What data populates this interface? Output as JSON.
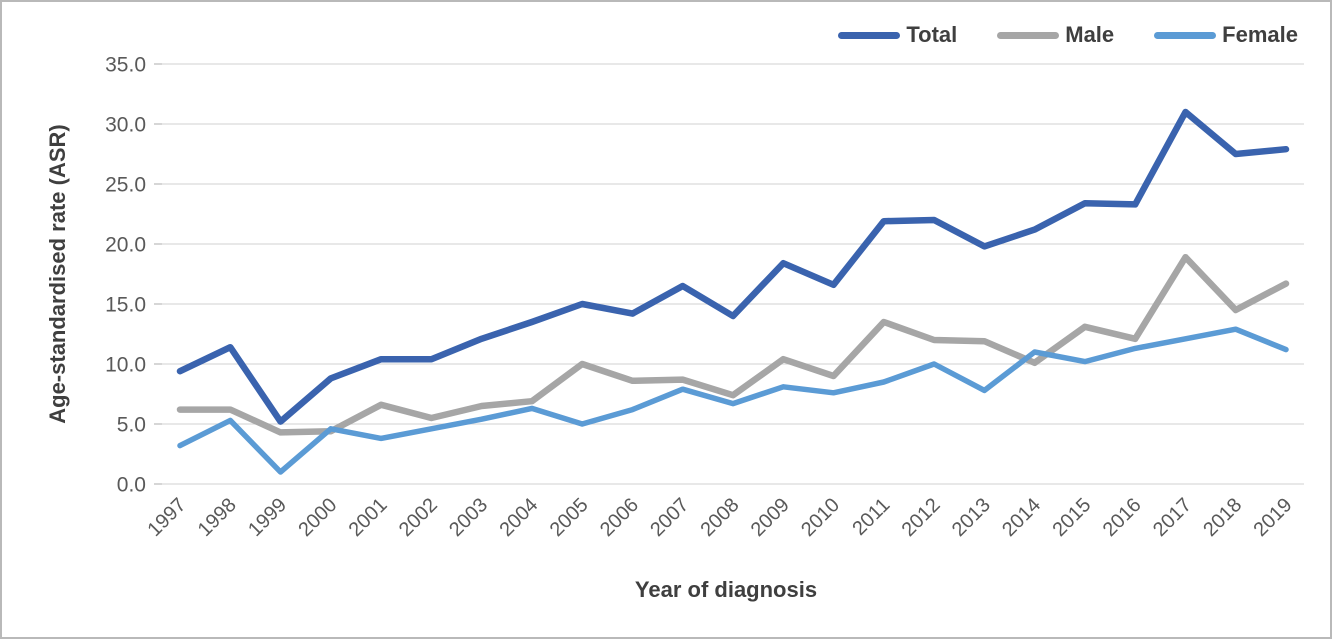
{
  "chart_data": {
    "type": "line",
    "title": "",
    "xlabel": "Year of diagnosis",
    "ylabel": "Age-standardised rate (ASR)",
    "ylim": [
      0,
      35
    ],
    "ytick_step": 5,
    "ytick_labels": [
      "0.0",
      "5.0",
      "10.0",
      "15.0",
      "20.0",
      "25.0",
      "30.0",
      "35.0"
    ],
    "grid": true,
    "gridline_color": "#d9d9d9",
    "tick_color": "#bfbfbf",
    "tick_text_color": "#595959",
    "axis_title_color": "#3f3f3f",
    "legend_position": "top-right",
    "categories": [
      "1997",
      "1998",
      "1999",
      "2000",
      "2001",
      "2002",
      "2003",
      "2004",
      "2005",
      "2006",
      "2007",
      "2008",
      "2009",
      "2010",
      "2011",
      "2012",
      "2013",
      "2014",
      "2015",
      "2016",
      "2017",
      "2018",
      "2019"
    ],
    "series": [
      {
        "name": "Total",
        "color": "#3a63ae",
        "values": [
          9.4,
          11.4,
          5.2,
          8.8,
          10.4,
          10.4,
          12.1,
          13.5,
          15.0,
          14.2,
          16.5,
          14.0,
          18.4,
          16.6,
          21.9,
          22.0,
          19.8,
          21.2,
          23.4,
          23.3,
          31.0,
          27.5,
          27.9
        ]
      },
      {
        "name": "Male",
        "color": "#a6a6a6",
        "values": [
          6.2,
          6.2,
          4.3,
          4.4,
          6.6,
          5.5,
          6.5,
          6.9,
          10.0,
          8.6,
          8.7,
          7.4,
          10.4,
          9.0,
          13.5,
          12.0,
          11.9,
          10.1,
          13.1,
          12.1,
          18.9,
          14.5,
          16.7
        ]
      },
      {
        "name": "Female",
        "color": "#5b9bd5",
        "values": [
          3.2,
          5.3,
          1.0,
          4.6,
          3.8,
          4.6,
          5.4,
          6.3,
          5.0,
          6.2,
          7.9,
          6.7,
          8.1,
          7.6,
          8.5,
          10.0,
          7.8,
          11.0,
          10.2,
          11.3,
          12.1,
          12.9,
          11.2
        ]
      }
    ]
  }
}
